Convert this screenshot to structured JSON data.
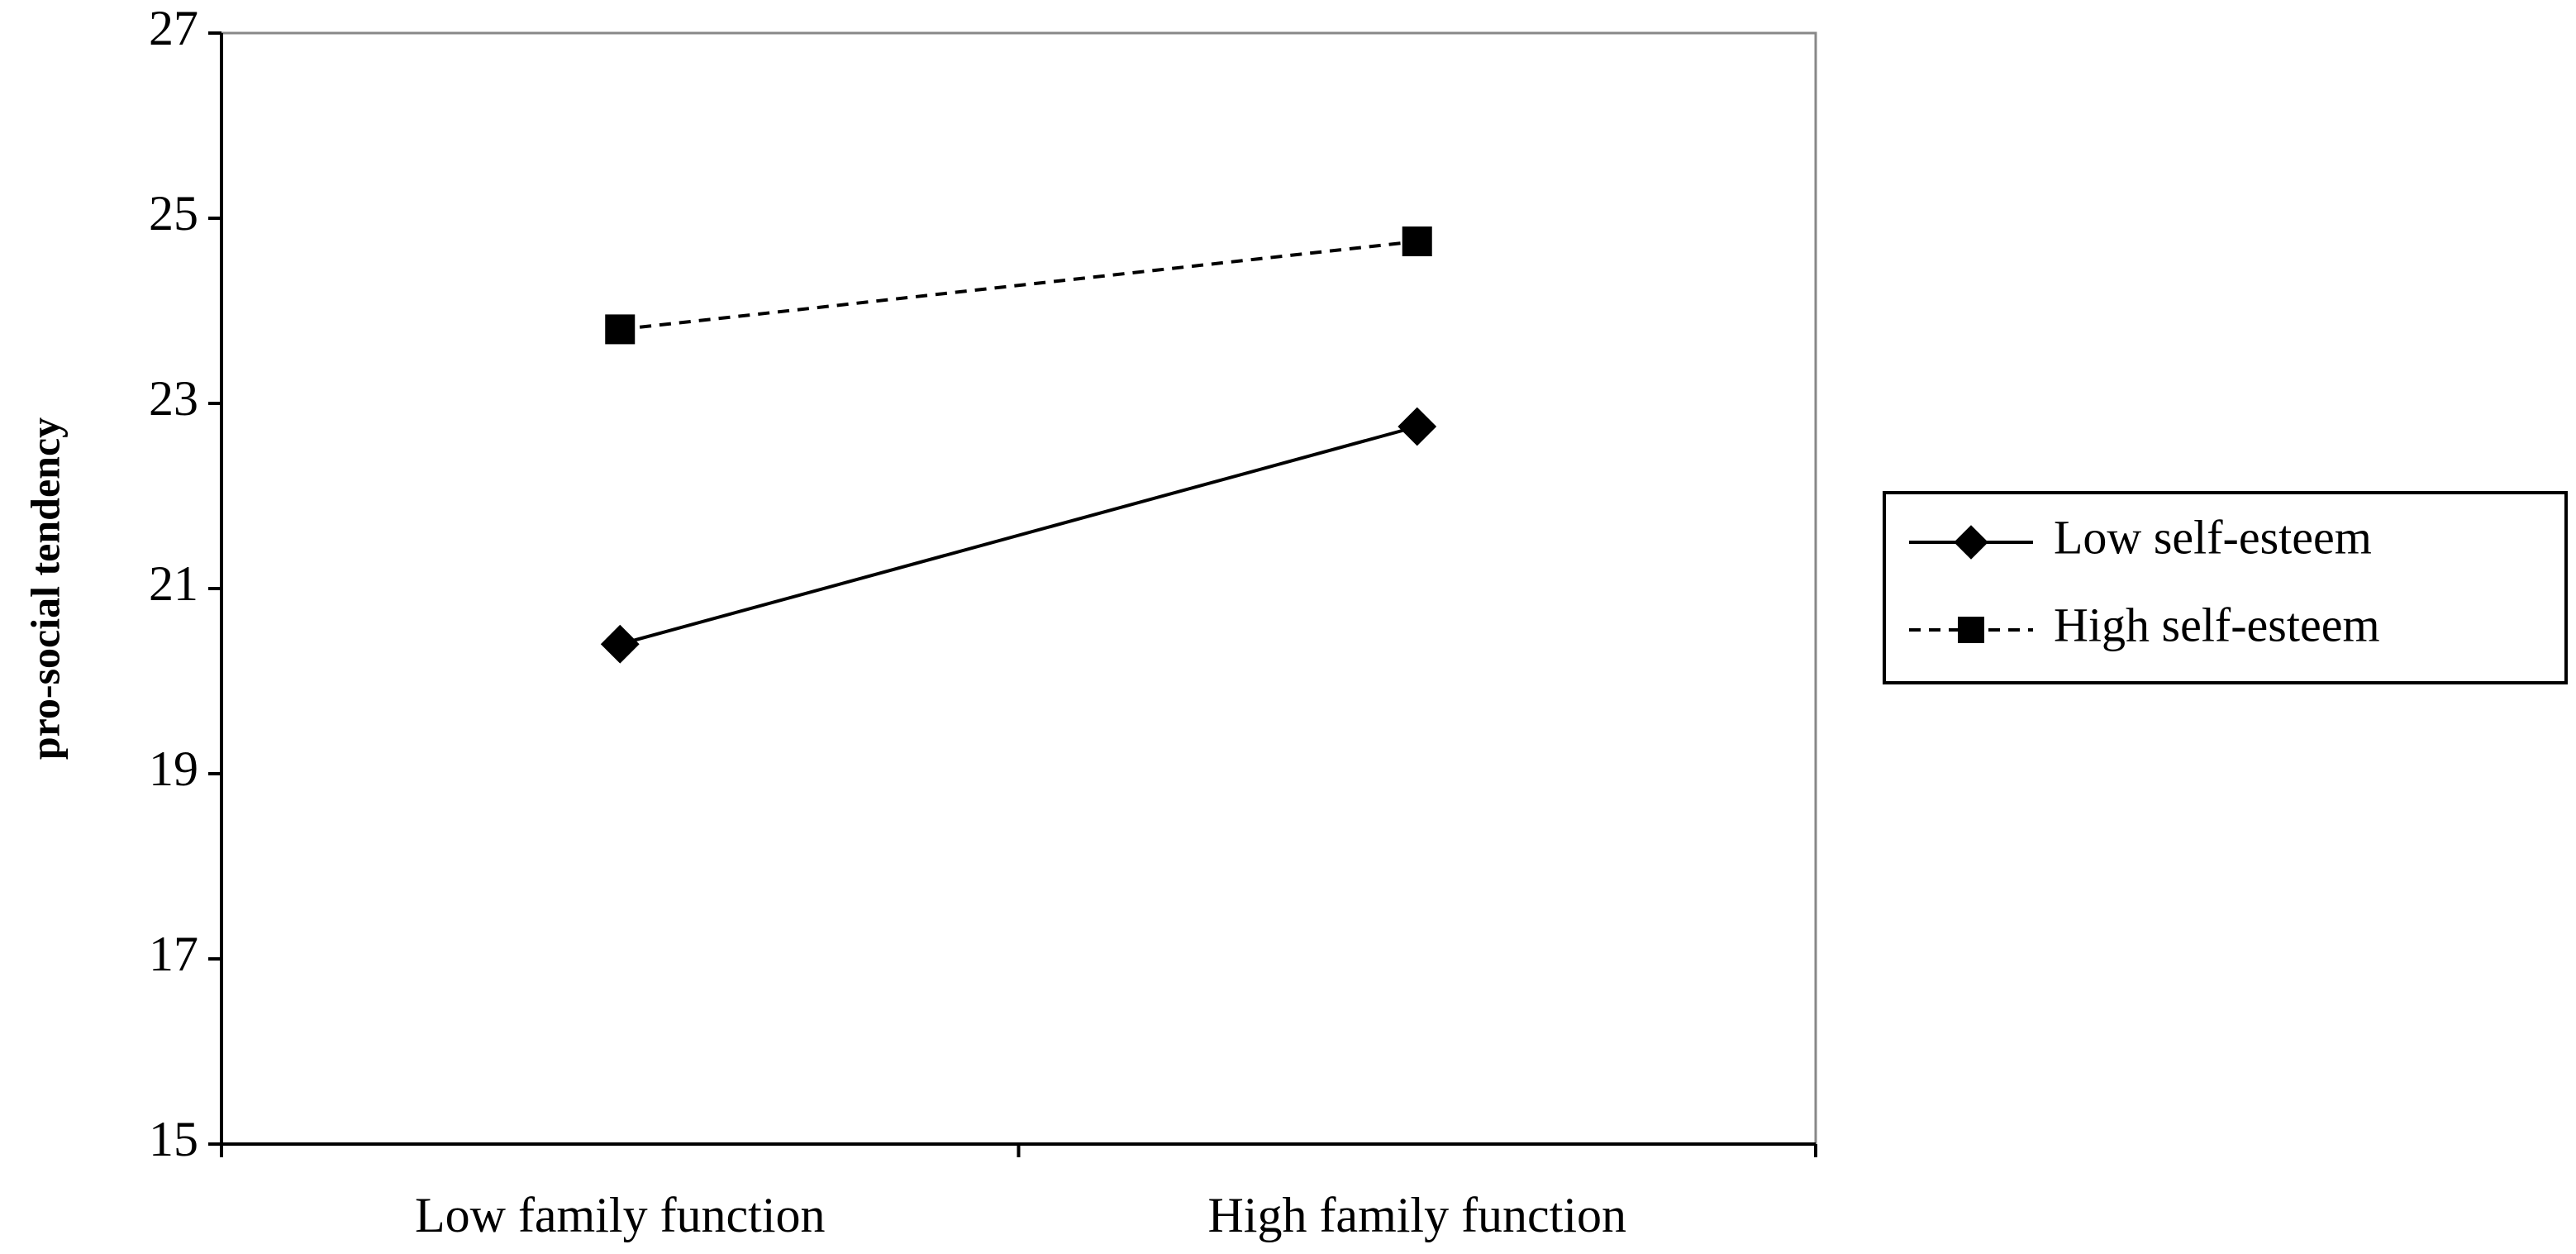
{
  "chart_data": {
    "type": "line",
    "y_label": "pro-social tendency",
    "categories": [
      "Low family function",
      "High family function"
    ],
    "series": [
      {
        "name": "Low self-esteem",
        "color": "#000000",
        "dash": "solid",
        "marker": "diamond",
        "values": [
          20.4,
          22.75
        ]
      },
      {
        "name": "High self-esteem",
        "color": "#000000",
        "dash": "dashed",
        "marker": "square",
        "values": [
          23.8,
          24.75
        ]
      }
    ],
    "ylim": [
      15,
      27
    ],
    "yticks": [
      15,
      17,
      19,
      21,
      23,
      25,
      27
    ],
    "grid": false,
    "legend": "right"
  }
}
